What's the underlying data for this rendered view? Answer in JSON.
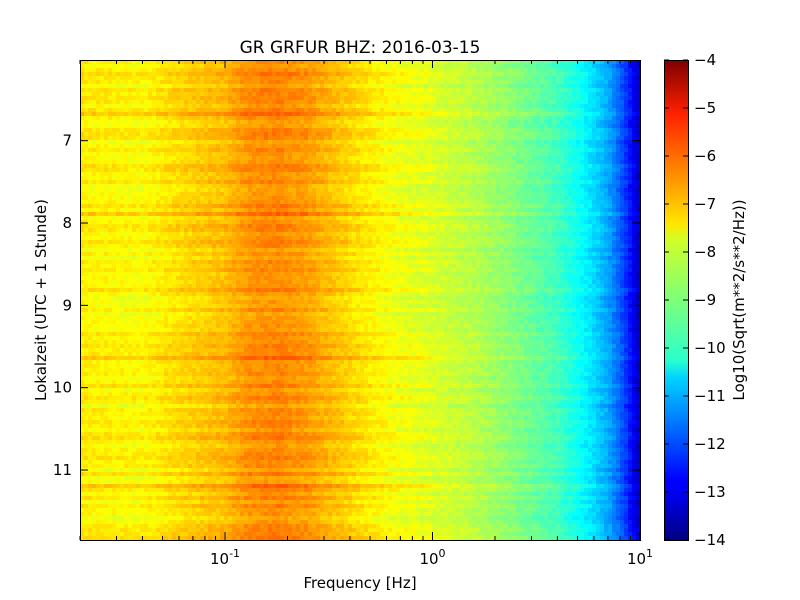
{
  "chart_data": {
    "type": "heatmap",
    "title": "GR GRFUR BHZ: 2016-03-15",
    "xlabel": "Frequency [Hz]",
    "ylabel": "Lokalzeit (UTC + 1 Stunde)",
    "x_scale": "log",
    "xlim": [
      0.02,
      10
    ],
    "ylim": [
      11.85,
      6.02
    ],
    "x_ticks": [
      {
        "value": 0.1,
        "base": "10",
        "exp": "-1"
      },
      {
        "value": 1,
        "base": "10",
        "exp": "0"
      },
      {
        "value": 10,
        "base": "10",
        "exp": "1"
      }
    ],
    "y_ticks": [
      {
        "value": 7,
        "label": "7"
      },
      {
        "value": 8,
        "label": "8"
      },
      {
        "value": 9,
        "label": "9"
      },
      {
        "value": 10,
        "label": "10"
      },
      {
        "value": 11,
        "label": "11"
      }
    ],
    "colorbar": {
      "label": "Log10(Sqrt(m**2/s**2/Hz))",
      "range": [
        -14,
        -4
      ],
      "colormap": "jet",
      "ticks": [
        {
          "value": -4,
          "label": "−4"
        },
        {
          "value": -5,
          "label": "−5"
        },
        {
          "value": -6,
          "label": "−6"
        },
        {
          "value": -7,
          "label": "−7"
        },
        {
          "value": -8,
          "label": "−8"
        },
        {
          "value": -9,
          "label": "−9"
        },
        {
          "value": -10,
          "label": "−10"
        },
        {
          "value": -11,
          "label": "−11"
        },
        {
          "value": -12,
          "label": "−12"
        },
        {
          "value": -13,
          "label": "−13"
        },
        {
          "value": -14,
          "label": "−14"
        }
      ]
    },
    "spectrum_profile": {
      "frequencies": [
        0.02,
        0.04,
        0.06,
        0.1,
        0.13,
        0.18,
        0.25,
        0.35,
        0.5,
        0.7,
        1.0,
        1.5,
        2.0,
        3.0,
        4.0,
        5.0,
        6.0,
        7.0,
        8.0,
        9.0,
        10.0
      ],
      "values": [
        -7.6,
        -7.75,
        -7.4,
        -7.1,
        -6.7,
        -6.6,
        -6.8,
        -7.2,
        -7.6,
        -7.9,
        -8.1,
        -8.4,
        -8.7,
        -9.2,
        -9.6,
        -10.1,
        -10.6,
        -11.1,
        -11.8,
        -12.6,
        -13.4
      ]
    },
    "grid": false
  }
}
